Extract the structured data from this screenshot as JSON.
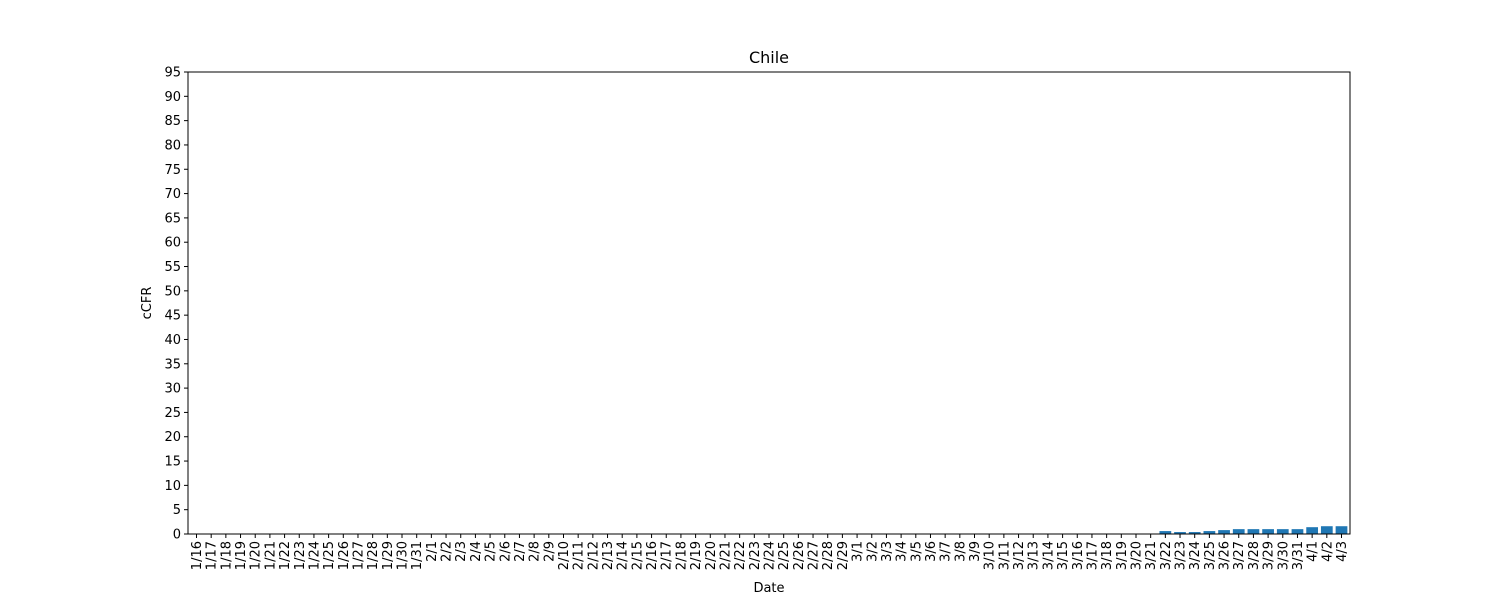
{
  "chart_data": {
    "type": "bar",
    "title": "Chile",
    "xlabel": "Date",
    "ylabel": "cCFR",
    "ylim": [
      0,
      95
    ],
    "yticks": [
      0,
      5,
      10,
      15,
      20,
      25,
      30,
      35,
      40,
      45,
      50,
      55,
      60,
      65,
      70,
      75,
      80,
      85,
      90,
      95
    ],
    "grid": false,
    "color": "#1f77b4",
    "categories": [
      "1/16",
      "1/17",
      "1/18",
      "1/19",
      "1/20",
      "1/21",
      "1/22",
      "1/23",
      "1/24",
      "1/25",
      "1/26",
      "1/27",
      "1/28",
      "1/29",
      "1/30",
      "1/31",
      "2/1",
      "2/2",
      "2/3",
      "2/4",
      "2/5",
      "2/6",
      "2/7",
      "2/8",
      "2/9",
      "2/10",
      "2/11",
      "2/12",
      "2/13",
      "2/14",
      "2/15",
      "2/16",
      "2/17",
      "2/18",
      "2/19",
      "2/20",
      "2/21",
      "2/22",
      "2/23",
      "2/24",
      "2/25",
      "2/26",
      "2/27",
      "2/28",
      "2/29",
      "3/1",
      "3/2",
      "3/3",
      "3/4",
      "3/5",
      "3/6",
      "3/7",
      "3/8",
      "3/9",
      "3/10",
      "3/11",
      "3/12",
      "3/13",
      "3/14",
      "3/15",
      "3/16",
      "3/17",
      "3/18",
      "3/19",
      "3/20",
      "3/21",
      "3/22",
      "3/23",
      "3/24",
      "3/25",
      "3/26",
      "3/27",
      "3/28",
      "3/29",
      "3/30",
      "3/31",
      "4/1",
      "4/2",
      "4/3"
    ],
    "values": [
      0,
      0,
      0,
      0,
      0,
      0,
      0,
      0,
      0,
      0,
      0,
      0,
      0,
      0,
      0,
      0,
      0,
      0,
      0,
      0,
      0,
      0,
      0,
      0,
      0,
      0,
      0,
      0,
      0,
      0,
      0,
      0,
      0,
      0,
      0,
      0,
      0,
      0,
      0,
      0,
      0,
      0,
      0,
      0,
      0,
      0,
      0,
      0,
      0,
      0,
      0,
      0,
      0,
      0,
      0,
      0,
      0,
      0,
      0,
      0,
      0,
      0,
      0,
      0,
      0,
      0,
      0.6,
      0.4,
      0.4,
      0.6,
      0.8,
      1.0,
      1.0,
      1.0,
      1.0,
      1.0,
      1.4,
      1.6,
      1.6
    ]
  }
}
